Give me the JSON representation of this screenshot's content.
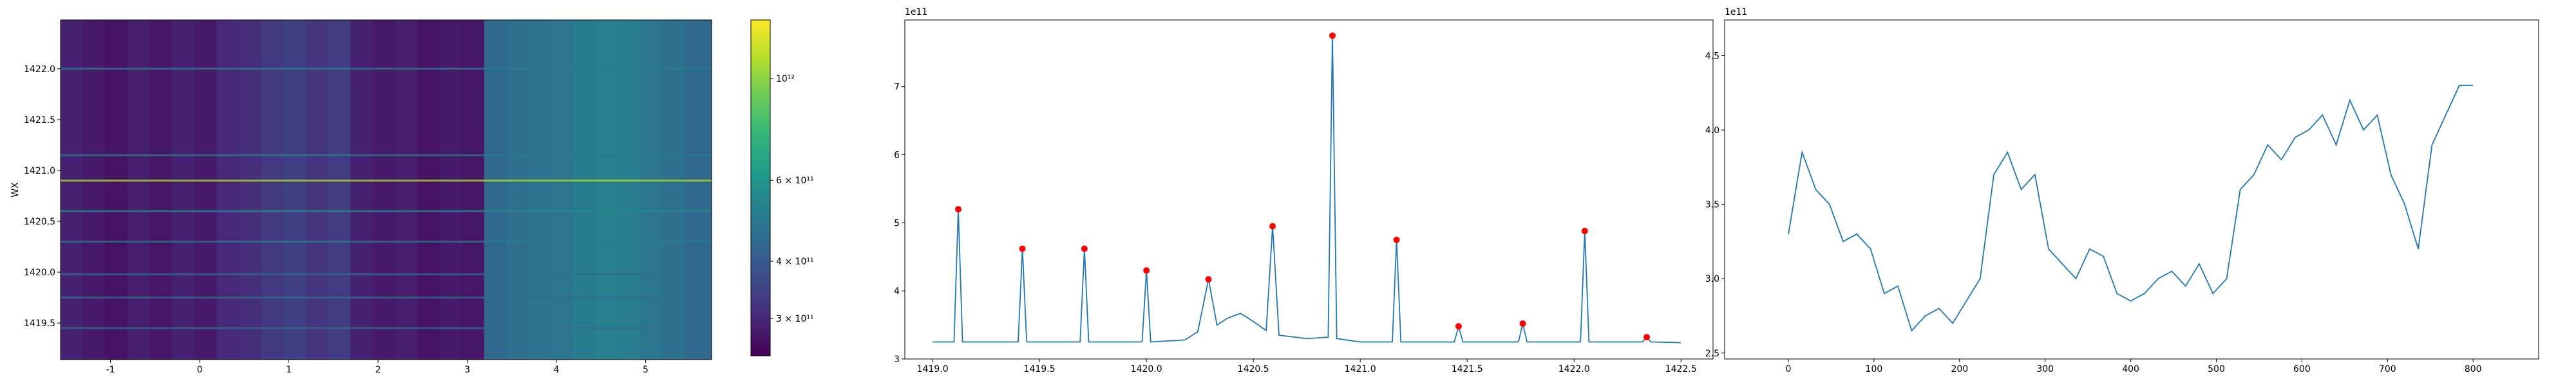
{
  "chart_data": [
    {
      "type": "heatmap",
      "ylabel": "WX",
      "xlim": [
        -1.56,
        5.74
      ],
      "ylim": [
        1419.14,
        1422.48
      ],
      "xticks": [
        -1,
        0,
        1,
        2,
        3,
        4,
        5
      ],
      "yticks": [
        1419.5,
        {
          "value": 1420.0,
          "label": "1420.0"
        },
        1420.5,
        {
          "value": 1421.0,
          "label": "1421.0"
        },
        1421.5,
        {
          "value": 1422.0,
          "label": "1422.0"
        }
      ],
      "x_edges": [
        -1.56,
        -1.31,
        -1.06,
        -0.81,
        -0.56,
        -0.31,
        -0.06,
        0.19,
        0.44,
        0.69,
        0.94,
        1.19,
        1.44,
        1.69,
        1.94,
        2.19,
        2.44,
        2.69,
        2.94,
        3.19,
        3.44,
        3.69,
        3.94,
        4.19,
        4.44,
        4.69,
        4.94,
        5.19,
        5.44,
        5.74
      ],
      "values": [
        290000000000.0,
        280000000000.0,
        270000000000.0,
        285000000000.0,
        275000000000.0,
        290000000000.0,
        280000000000.0,
        300000000000.0,
        310000000000.0,
        330000000000.0,
        340000000000.0,
        320000000000.0,
        335000000000.0,
        290000000000.0,
        280000000000.0,
        285000000000.0,
        270000000000.0,
        280000000000.0,
        275000000000.0,
        440000000000.0,
        460000000000.0,
        470000000000.0,
        480000000000.0,
        500000000000.0,
        520000000000.0,
        510000000000.0,
        480000000000.0,
        460000000000.0,
        440000000000.0
      ],
      "rows": {
        "y": [
          1422.0,
          1421.15,
          1420.9,
          1420.6,
          1420.3,
          1419.98,
          1419.75,
          1419.45
        ],
        "values": [
          500000000000.0,
          500000000000.0,
          1100000000000.0,
          550000000000.0,
          500000000000.0,
          450000000000.0,
          450000000000.0,
          450000000000.0
        ]
      },
      "colorbar": {
        "scale": "log",
        "clim": [
          249000000000.0,
          1340000000000.0
        ],
        "colormap": "viridis",
        "ticks": [
          {
            "value": 1000000000000.0,
            "label": "10¹²"
          },
          {
            "value": 600000000000.0,
            "label": "6 × 10¹¹"
          },
          {
            "value": 400000000000.0,
            "label": "4 × 10¹¹"
          },
          {
            "value": 300000000000.0,
            "label": "3 × 10¹¹"
          }
        ]
      }
    },
    {
      "type": "line",
      "y_offset_text": "1e11",
      "xlim": [
        1418.87,
        1422.65
      ],
      "ylim": [
        3,
        7.98
      ],
      "xticks": [
        {
          "value": 1419.0,
          "label": "1419.0"
        },
        1419.5,
        {
          "value": 1420.0,
          "label": "1420.0"
        },
        1420.5,
        {
          "value": 1421.0,
          "label": "1421.0"
        },
        1421.5,
        {
          "value": 1422.0,
          "label": "1422.0"
        },
        1422.5
      ],
      "yticks": [
        3,
        4,
        5,
        6,
        7
      ],
      "series": [
        {
          "color": "#1f77b4",
          "x": [
            1419.0,
            1419.1,
            1419.12,
            1419.14,
            1419.4,
            1419.42,
            1419.44,
            1419.69,
            1419.71,
            1419.73,
            1419.98,
            1420.0,
            1420.02,
            1420.18,
            1420.24,
            1420.29,
            1420.33,
            1420.38,
            1420.44,
            1420.5,
            1420.56,
            1420.59,
            1420.62,
            1420.75,
            1420.85,
            1420.87,
            1420.89,
            1421.0,
            1421.15,
            1421.17,
            1421.19,
            1421.44,
            1421.46,
            1421.48,
            1421.74,
            1421.76,
            1421.78,
            1422.03,
            1422.05,
            1422.07,
            1422.32,
            1422.34,
            1422.36,
            1422.5
          ],
          "values": [
            3.25,
            3.25,
            5.2,
            3.25,
            3.25,
            4.62,
            3.25,
            3.25,
            4.62,
            3.25,
            3.25,
            4.3,
            3.25,
            3.28,
            3.4,
            4.17,
            3.5,
            3.6,
            3.67,
            3.55,
            3.42,
            4.95,
            3.35,
            3.3,
            3.32,
            7.75,
            3.3,
            3.25,
            3.25,
            4.75,
            3.25,
            3.25,
            3.48,
            3.25,
            3.25,
            3.52,
            3.25,
            3.25,
            4.88,
            3.25,
            3.25,
            3.32,
            3.25,
            3.24
          ]
        }
      ],
      "peaks": {
        "color": "#ff0000",
        "x": [
          1419.12,
          1419.42,
          1419.71,
          1420.0,
          1420.29,
          1420.59,
          1420.87,
          1421.17,
          1421.46,
          1421.76,
          1422.05,
          1422.34
        ],
        "values": [
          5.2,
          4.62,
          4.62,
          4.3,
          4.17,
          4.95,
          7.75,
          4.75,
          3.48,
          3.52,
          4.88,
          3.32
        ]
      }
    },
    {
      "type": "line",
      "y_offset_text": "1e11",
      "xlim": [
        -74.5,
        876.6
      ],
      "ylim": [
        2.46,
        4.74
      ],
      "xticks": [
        0,
        100,
        200,
        300,
        400,
        500,
        600,
        700,
        800
      ],
      "yticks": [
        2.5,
        {
          "value": 3.0,
          "label": "3.0"
        },
        3.5,
        {
          "value": 4.0,
          "label": "4.0"
        },
        4.5
      ],
      "series": [
        {
          "color": "#1f77b4",
          "x": [
            0,
            16,
            32,
            48,
            64,
            80,
            96,
            112,
            128,
            144,
            160,
            176,
            192,
            208,
            224,
            240,
            256,
            272,
            288,
            304,
            320,
            336,
            352,
            368,
            384,
            400,
            416,
            432,
            448,
            464,
            480,
            496,
            512,
            528,
            544,
            560,
            576,
            592,
            608,
            624,
            640,
            656,
            672,
            688,
            704,
            720,
            736,
            752,
            768,
            784,
            800
          ],
          "values": [
            3.3,
            3.85,
            3.6,
            3.5,
            3.25,
            3.3,
            3.2,
            2.9,
            2.95,
            2.65,
            2.75,
            2.8,
            2.7,
            2.85,
            3.0,
            3.7,
            3.85,
            3.6,
            3.7,
            3.2,
            3.1,
            3.0,
            3.2,
            3.15,
            2.9,
            2.85,
            2.9,
            3.0,
            3.05,
            2.95,
            3.1,
            2.9,
            3.0,
            3.6,
            3.7,
            3.9,
            3.8,
            3.95,
            4.0,
            4.1,
            3.9,
            4.2,
            4.0,
            4.1,
            3.7,
            3.5,
            3.2,
            3.9,
            4.1,
            4.3,
            4.3
          ]
        }
      ]
    }
  ]
}
